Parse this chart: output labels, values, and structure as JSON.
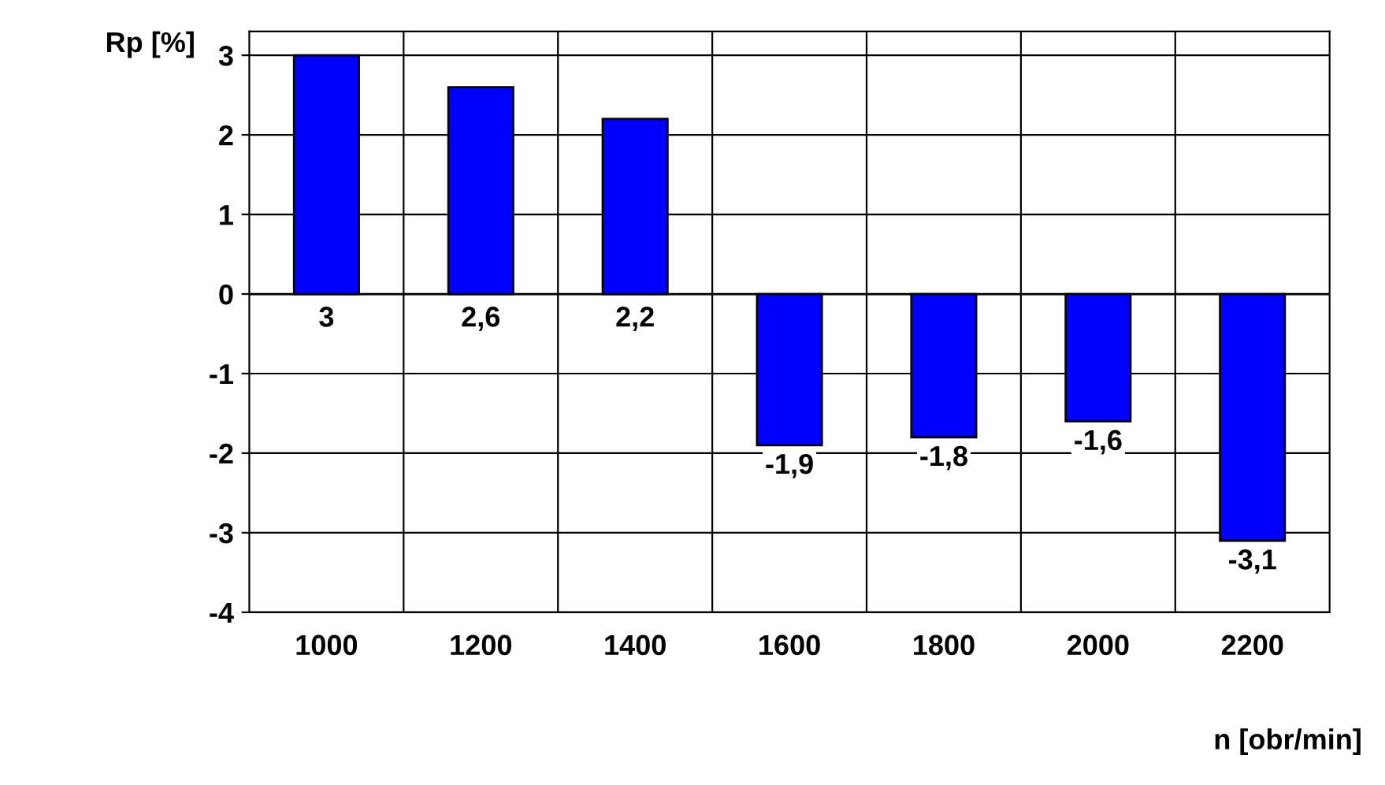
{
  "chart_data": {
    "type": "bar",
    "xlabel": "n [obr/min]",
    "ylabel": "Rp [%]",
    "categories": [
      "1000",
      "1200",
      "1400",
      "1600",
      "1800",
      "2000",
      "2200"
    ],
    "values": [
      3,
      2.6,
      2.2,
      -1.9,
      -1.8,
      -1.6,
      -3.1
    ],
    "value_labels": [
      "3",
      "2,6",
      "2,2",
      "-1,9",
      "-1,8",
      "-1,6",
      "-3,1"
    ],
    "color": "#0000ff",
    "ylim": [
      -4,
      3.3
    ],
    "yticks": [
      -4,
      -3,
      -2,
      -1,
      0,
      1,
      2,
      3
    ],
    "grid": true
  }
}
